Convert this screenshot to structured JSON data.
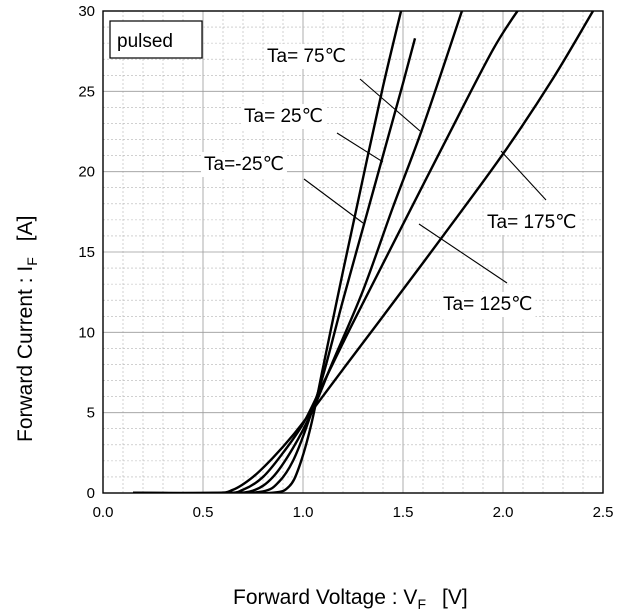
{
  "chart_data": {
    "type": "line",
    "title": "",
    "box_label": "pulsed",
    "xlabel": {
      "main": "Forward Voltage : V",
      "sub": "F",
      "unit": "[V]"
    },
    "ylabel": {
      "main": "Forward Current : I",
      "sub": "F",
      "unit": "[A]"
    },
    "xlim": [
      0,
      2.5
    ],
    "ylim": [
      0,
      30
    ],
    "x_ticks": [
      "0.0",
      "0.5",
      "1.0",
      "1.5",
      "2.0",
      "2.5"
    ],
    "y_ticks": [
      "0",
      "5",
      "10",
      "15",
      "20",
      "25",
      "30"
    ],
    "grid": true,
    "series": [
      {
        "name": "Ta=-25°C",
        "x": [
          0.15,
          0.6,
          0.85,
          0.93,
          0.98,
          1.04,
          1.1,
          1.2,
          1.3,
          1.4,
          1.5
        ],
        "y": [
          0,
          0,
          0.02,
          0.4,
          1.6,
          4.2,
          7.8,
          13.8,
          19.6,
          25.3,
          30.5
        ]
      },
      {
        "name": "Ta= 25°C",
        "x": [
          0.15,
          0.6,
          0.8,
          0.88,
          0.95,
          1.02,
          1.1,
          1.2,
          1.3,
          1.4,
          1.5,
          1.56
        ],
        "y": [
          0,
          0,
          0.1,
          0.7,
          2.0,
          4.2,
          7.3,
          12.0,
          16.5,
          21.0,
          25.5,
          28.3
        ]
      },
      {
        "name": "Ta= 75°C",
        "x": [
          0.15,
          0.6,
          0.75,
          0.85,
          0.95,
          1.05,
          1.15,
          1.3,
          1.45,
          1.6,
          1.8
        ],
        "y": [
          0,
          0,
          0.15,
          1.0,
          2.8,
          5.2,
          8.2,
          12.6,
          17.8,
          22.8,
          30.2
        ]
      },
      {
        "name": "Ta= 125°C",
        "x": [
          0.15,
          0.6,
          0.7,
          0.8,
          0.9,
          1.0,
          1.1,
          1.25,
          1.45,
          1.7,
          1.95,
          2.1
        ],
        "y": [
          0,
          0,
          0.2,
          1.0,
          2.5,
          4.3,
          6.8,
          10.6,
          15.5,
          21.6,
          27.6,
          30.5
        ]
      },
      {
        "name": "Ta= 175°C",
        "x": [
          0.15,
          0.55,
          0.65,
          0.75,
          0.85,
          0.95,
          1.05,
          1.2,
          1.4,
          1.7,
          2.0,
          2.25,
          2.45
        ],
        "y": [
          0,
          0,
          0.2,
          1.0,
          2.2,
          3.6,
          5.2,
          7.7,
          11.0,
          16.0,
          21.1,
          25.8,
          30.0
        ]
      }
    ],
    "annotations": [
      {
        "text": "Ta= 75℃"
      },
      {
        "text": "Ta= 25℃"
      },
      {
        "text": "Ta=-25℃"
      },
      {
        "text": "Ta= 175℃"
      },
      {
        "text": "Ta= 125℃"
      }
    ]
  }
}
